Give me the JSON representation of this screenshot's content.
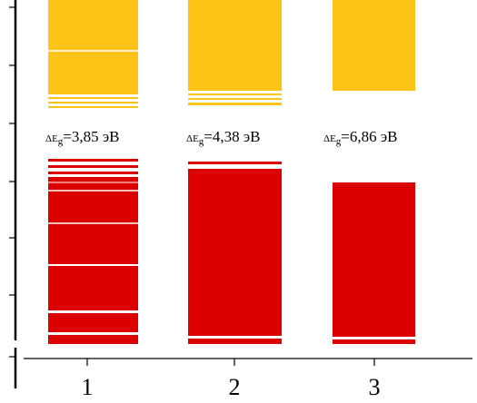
{
  "colors": {
    "conduction_band": "#fcc416",
    "valence_band": "#dd0000",
    "axis": "#000000"
  },
  "chart_data": {
    "type": "band-diagram",
    "categories": [
      "1",
      "2",
      "3"
    ],
    "gaps": [
      {
        "category": "1",
        "symbol": "ΔE",
        "subscript": "g",
        "text": "=3,85 эВ",
        "value": 3.85,
        "unit": "эВ"
      },
      {
        "category": "2",
        "symbol": "ΔE",
        "subscript": "g",
        "text": "=4,38 эВ",
        "value": 4.38,
        "unit": "эВ"
      },
      {
        "category": "3",
        "symbol": "ΔE",
        "subscript": "g",
        "text": "=6,86 эВ",
        "value": 6.86,
        "unit": "эВ"
      }
    ]
  }
}
